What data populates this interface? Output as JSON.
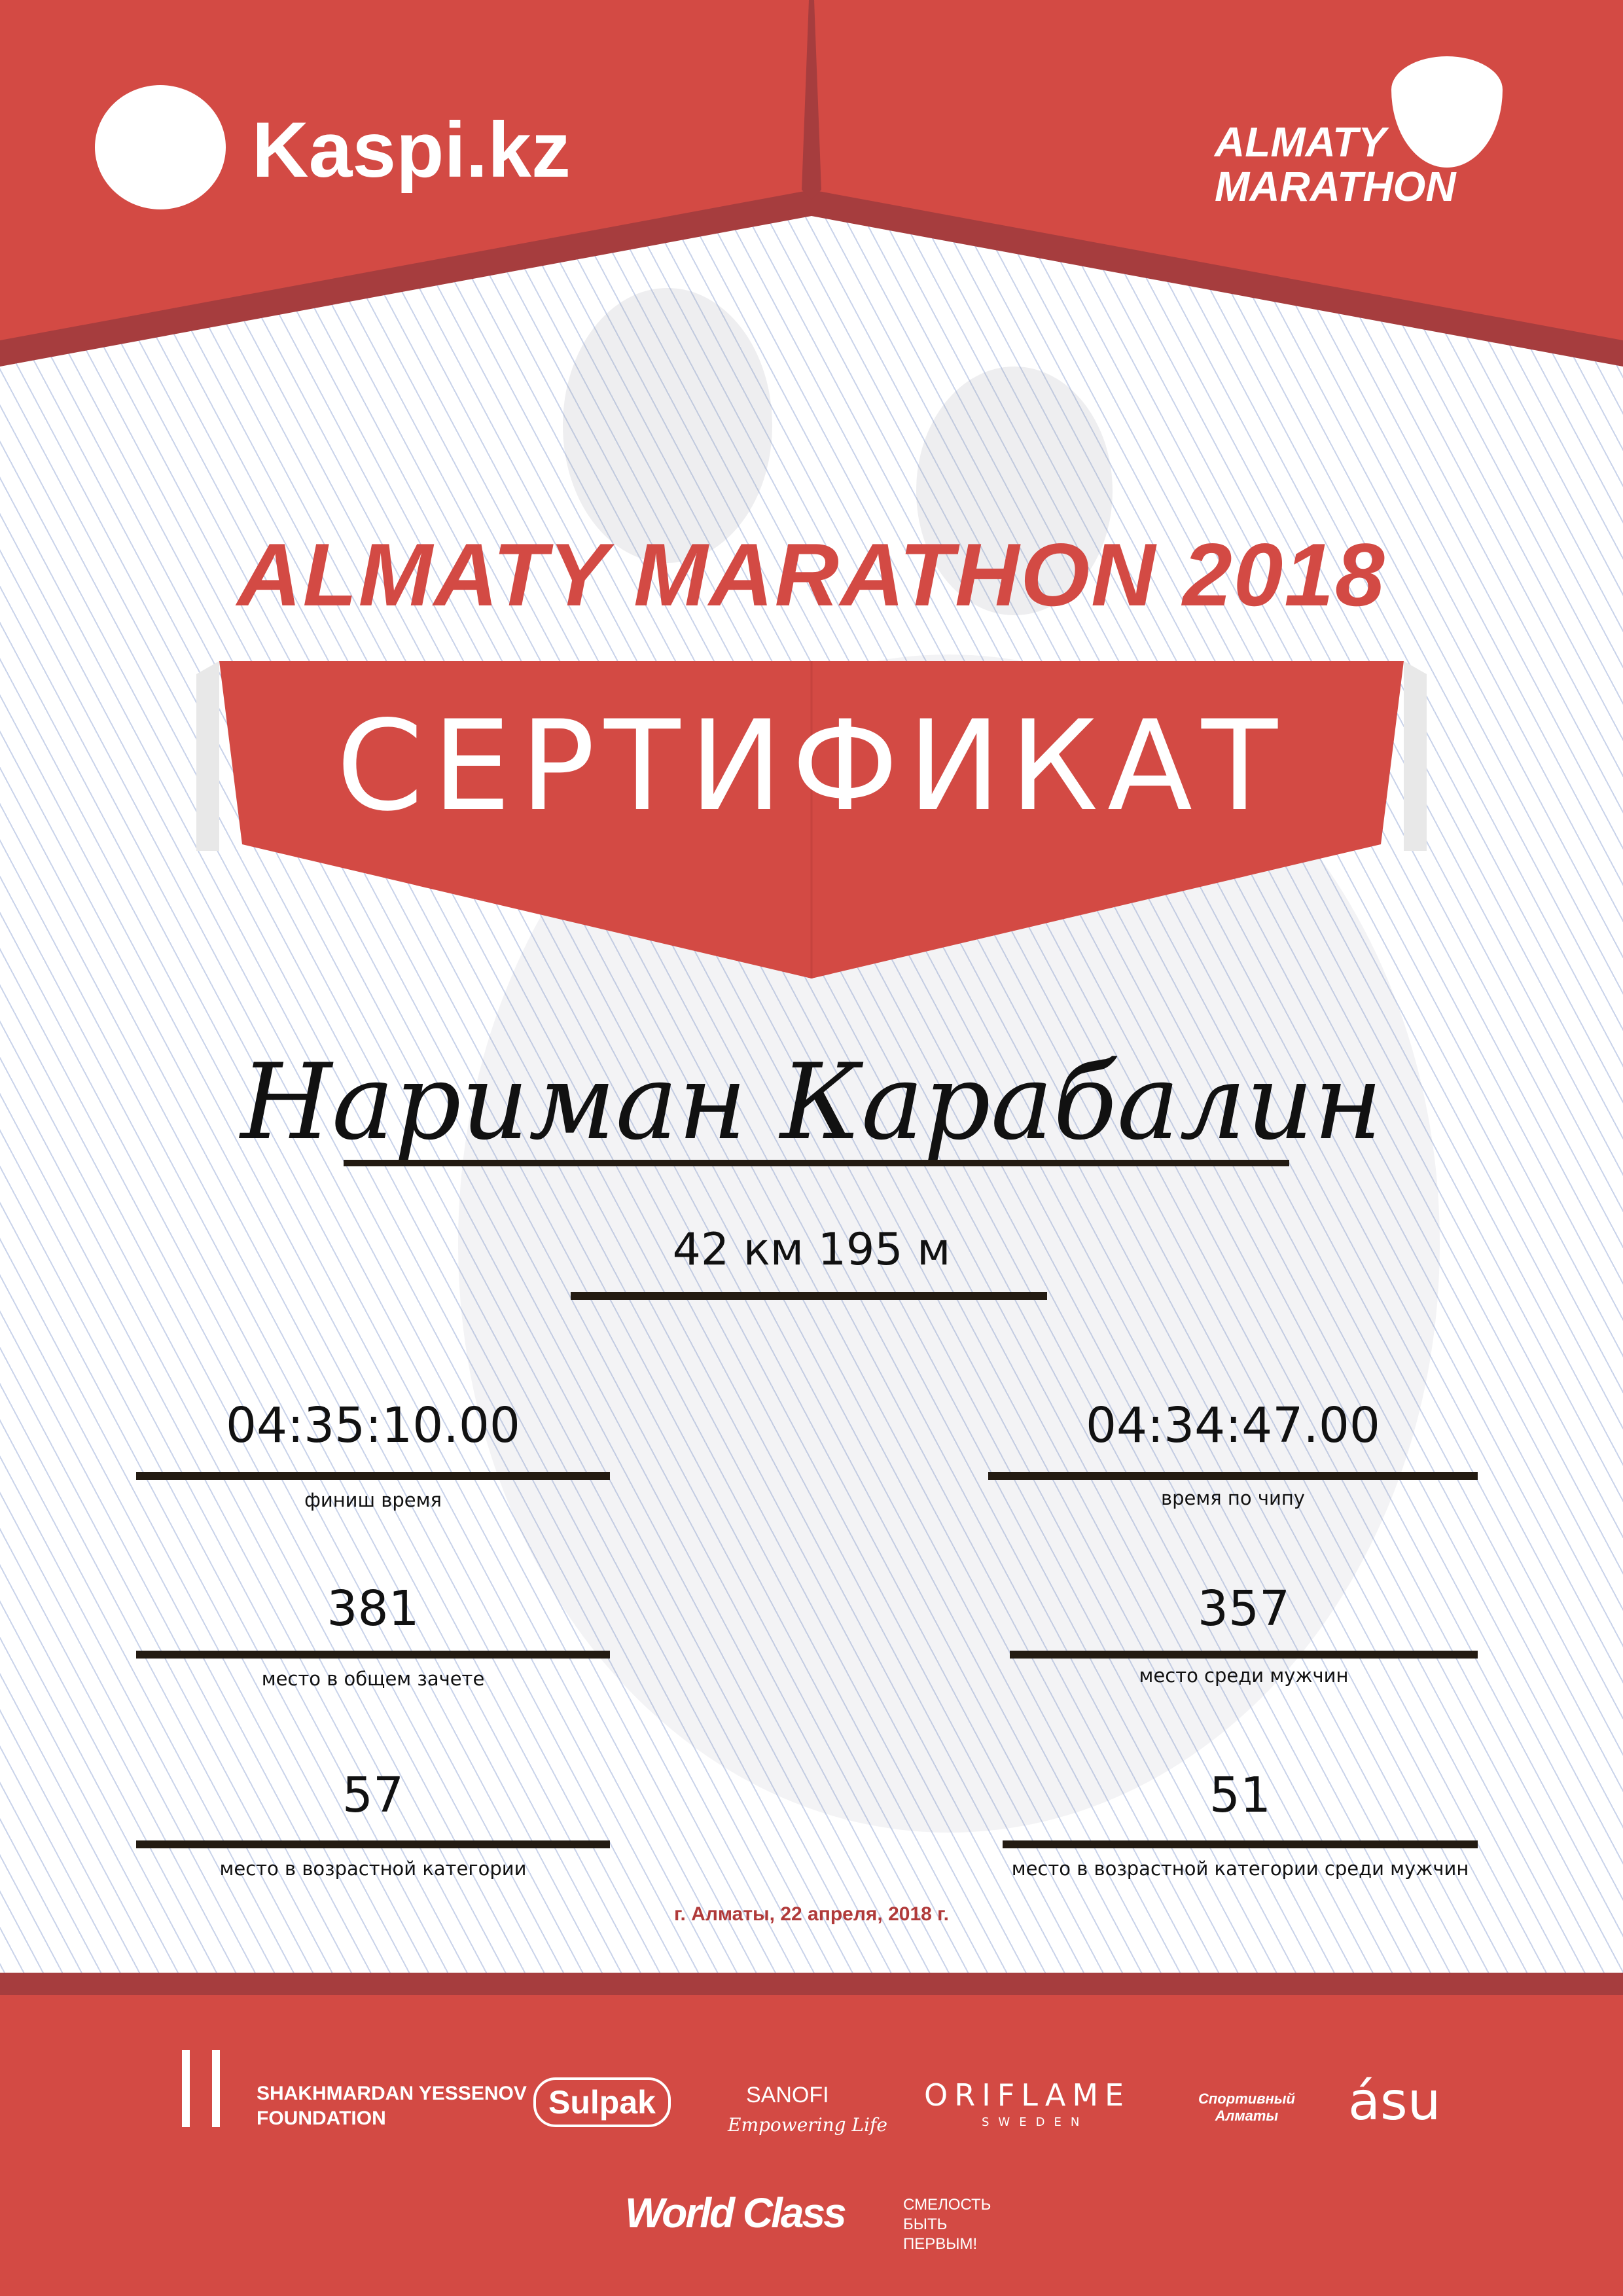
{
  "header": {
    "sponsor_logo": "Kaspi.kz",
    "event_logo": "ALMATY MARATHON",
    "event_logo_line1": "ALMATY",
    "event_logo_line2": "MARATHON"
  },
  "title": "ALMATY MARATHON 2018",
  "banner": "СЕРТИФИКАТ",
  "participant_name": "Нариман Карабалин",
  "distance": "42 км 195 м",
  "results": {
    "finish_time": {
      "value": "04:35:10.00",
      "label": "финиш время"
    },
    "chip_time": {
      "value": "04:34:47.00",
      "label": "время по чипу"
    },
    "overall_place": {
      "value": "381",
      "label": "место в общем зачете"
    },
    "men_place": {
      "value": "357",
      "label": "место среди мужчин"
    },
    "age_place": {
      "value": "57",
      "label": "место в возрастной категории"
    },
    "age_men_place": {
      "value": "51",
      "label": "место в возрастной категории среди мужчин"
    }
  },
  "date_place": "г. Алматы, 22 апреля, 2018 г.",
  "footer_sponsors": {
    "yessenov": "SHAKHMARDAN YESSENOV",
    "yessenov2": "FOUNDATION",
    "sulpak": "Sulpak",
    "sanofi": "SANOFI",
    "sanofi_tag": "Empowering Life",
    "oriflame": "ORIFLAME",
    "oriflame_sub": "SWEDEN",
    "sport_almaty": "Спортивный Алматы",
    "asu": "ásu",
    "worldclass": "World Class",
    "smelost": "СМЕЛОСТЬ БЫТЬ ПЕРВЫМ!"
  },
  "colors": {
    "red": "#d34a44",
    "dark_red": "#a63d3e",
    "text": "#111111",
    "date": "#b03a3a"
  }
}
